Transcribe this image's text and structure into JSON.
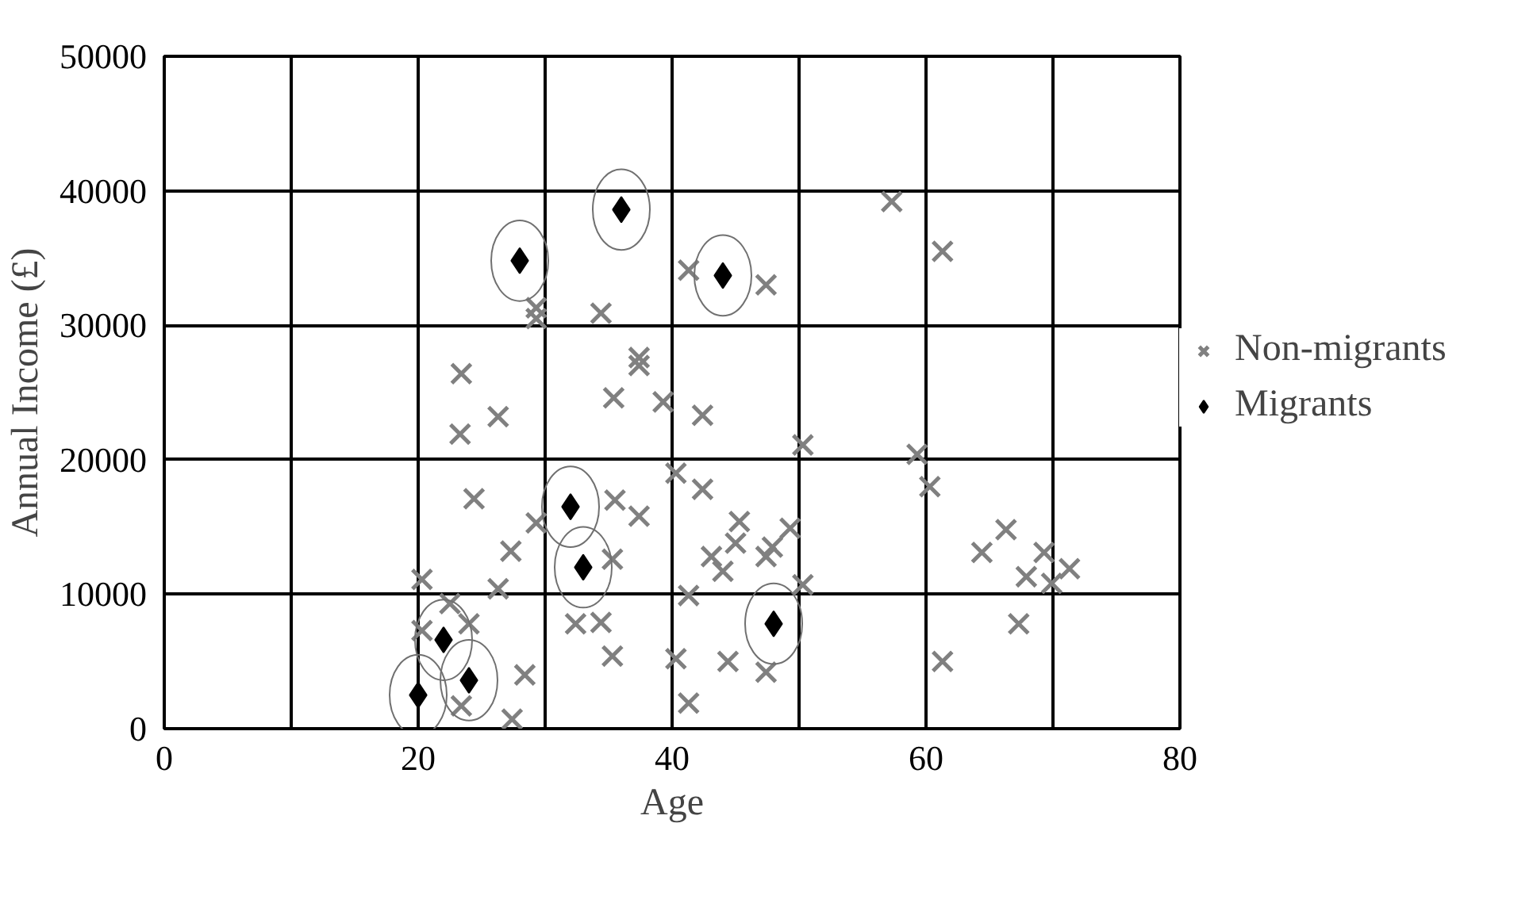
{
  "chart_data": {
    "type": "scatter",
    "xlabel": "Age",
    "ylabel": "Annual Income (£)",
    "xlim": [
      0,
      80
    ],
    "ylim": [
      0,
      50000
    ],
    "xticks": [
      0,
      {
        "value": 10,
        "label": null
      },
      20,
      {
        "value": 30,
        "label": null
      },
      40,
      {
        "value": 50,
        "label": null
      },
      60,
      {
        "value": 70,
        "label": null
      },
      80
    ],
    "yticks": [
      0,
      10000,
      20000,
      30000,
      40000,
      50000
    ],
    "grid": true,
    "legend": "right",
    "series": [
      {
        "name": "Non-migrants",
        "color": "#808080",
        "marker": "cross",
        "x": [
          24.4,
          29.3,
          27.3,
          20.3,
          26.3,
          20.3,
          22.5,
          24,
          23.4,
          27.4,
          28.4,
          32.4,
          34.4,
          35.3,
          35.5,
          37.4,
          35.3,
          40.3,
          42.4,
          41.3,
          40.3,
          41.3,
          45.3,
          43.1,
          45,
          47.4,
          44.4,
          47.4,
          44,
          29.3,
          29.3,
          34.4,
          41.3,
          47.4,
          23.4,
          23.3,
          26.3,
          37.4,
          37.4,
          35.4,
          39.3,
          42.4,
          57.3,
          61.3,
          50.3,
          59.3,
          60.3,
          49.3,
          47.9,
          50.3,
          66.3,
          64.4,
          69.3,
          67.9,
          71.3,
          69.9,
          67.3,
          61.3
        ],
        "values": [
          17100,
          15300,
          13200,
          11100,
          10400,
          7300,
          9300,
          7800,
          1700,
          700,
          4000,
          7800,
          7900,
          5400,
          17000,
          15800,
          12600,
          19000,
          17800,
          9900,
          5200,
          1900,
          15400,
          12800,
          13800,
          12800,
          5000,
          4200,
          11700,
          30500,
          31300,
          30900,
          34100,
          33000,
          26400,
          21900,
          23200,
          27600,
          27000,
          24600,
          24300,
          23300,
          39200,
          35500,
          21100,
          20400,
          18000,
          14900,
          13500,
          10700,
          14800,
          13100,
          13100,
          11300,
          11900,
          10800,
          7800,
          5000
        ]
      },
      {
        "name": "Migrants",
        "color": "#000000",
        "marker": "diamond",
        "x": [
          20,
          22,
          24,
          28,
          36,
          44,
          32,
          33,
          48
        ],
        "values": [
          2500,
          6600,
          3600,
          34800,
          38600,
          33700,
          16500,
          12000,
          7800
        ]
      }
    ]
  }
}
